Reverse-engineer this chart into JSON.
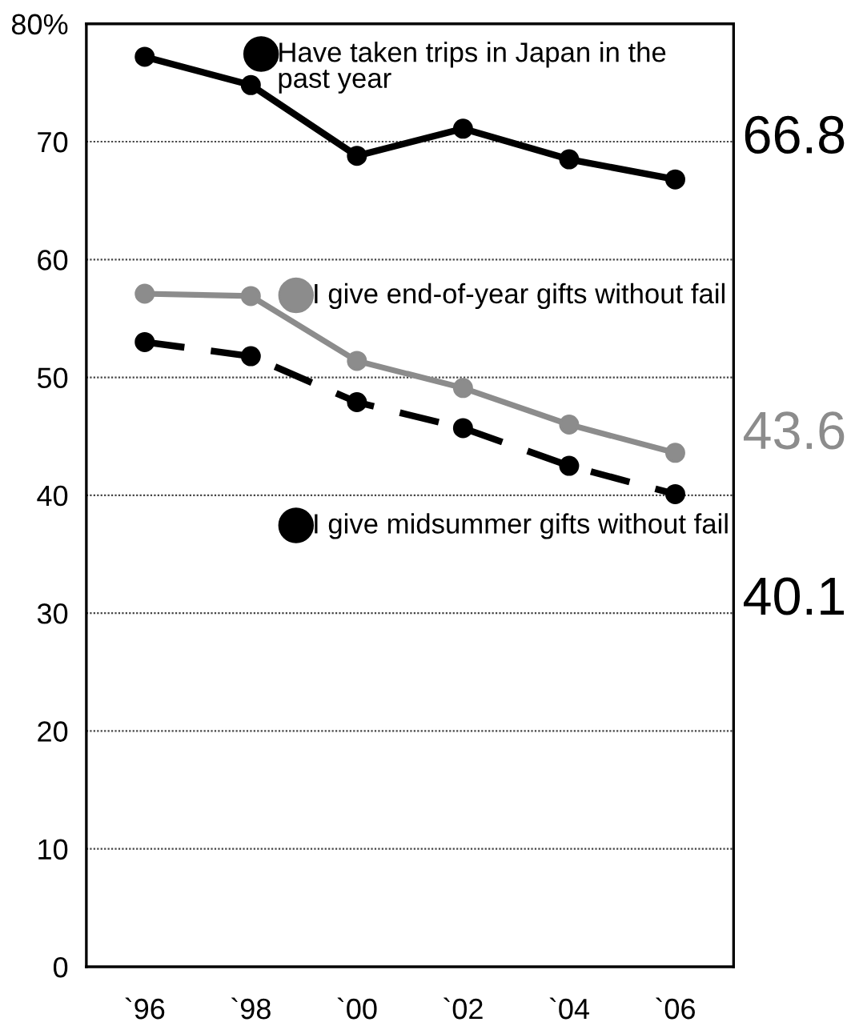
{
  "chart_data": {
    "type": "line",
    "categories": [
      "`96",
      "`98",
      "`00",
      "`02",
      "`04",
      "`06"
    ],
    "series": [
      {
        "name": "Have taken trips in Japan in the past year",
        "color": "#000000",
        "line_style": "solid",
        "values": [
          77.2,
          74.8,
          68.8,
          71.1,
          68.5,
          66.8
        ],
        "value_labels": [
          null,
          null,
          null,
          null,
          null,
          "66.8"
        ]
      },
      {
        "name": "I give end-of-year gifts without fail",
        "color": "#8c8c8c",
        "line_style": "solid",
        "values": [
          57.1,
          56.9,
          51.4,
          49.1,
          46.0,
          43.6
        ],
        "value_labels": [
          null,
          null,
          null,
          null,
          null,
          "43.6"
        ]
      },
      {
        "name": "I give midsummer gifts without fail",
        "color": "#000000",
        "line_style": "dashed",
        "values": [
          53.0,
          51.8,
          47.9,
          45.7,
          42.5,
          40.1
        ],
        "value_labels": [
          null,
          null,
          null,
          null,
          null,
          "40.1"
        ]
      }
    ],
    "ylim": [
      0,
      80
    ],
    "yticks": [
      0,
      10,
      20,
      30,
      40,
      50,
      60,
      70,
      {
        "value": 80,
        "label": "80%"
      }
    ],
    "grid": "y",
    "marker": "circle",
    "legend": "top"
  }
}
